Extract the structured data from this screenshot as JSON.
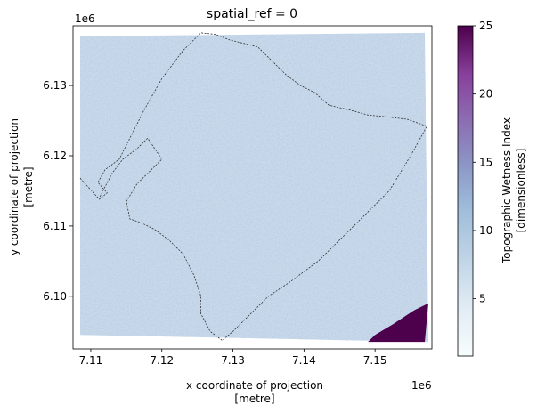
{
  "chart_data": {
    "type": "heatmap",
    "title": "spatial_ref = 0",
    "xlabel_line1": "x coordinate of projection",
    "xlabel_line2": "[metre]",
    "ylabel_line1": "y coordinate of projection",
    "ylabel_line2": "[metre]",
    "x_offset_label": "1e6",
    "y_offset_label": "1e6",
    "xlim": [
      7.1075,
      7.158
    ],
    "ylim": [
      6.0925,
      6.1385
    ],
    "x_ticks": [
      {
        "value": 7.11,
        "label": "7.11"
      },
      {
        "value": 7.12,
        "label": "7.12"
      },
      {
        "value": 7.13,
        "label": "7.13"
      },
      {
        "value": 7.14,
        "label": "7.14"
      },
      {
        "value": 7.15,
        "label": "7.15"
      }
    ],
    "y_ticks": [
      {
        "value": 6.1,
        "label": "6.10"
      },
      {
        "value": 6.11,
        "label": "6.11"
      },
      {
        "value": 6.12,
        "label": "6.12"
      },
      {
        "value": 6.13,
        "label": "6.13"
      }
    ],
    "colorbar": {
      "label_line1": "Topographic Wetness Index",
      "label_line2": "[dimensionless]",
      "min": 0.8,
      "max": 25,
      "colormap": "BuPu",
      "ticks": [
        {
          "value": 5,
          "label": "5"
        },
        {
          "value": 10,
          "label": "10"
        },
        {
          "value": 15,
          "label": "15"
        },
        {
          "value": 20,
          "label": "20"
        },
        {
          "value": 25,
          "label": "25"
        }
      ]
    },
    "raster_extent": {
      "top_left": [
        7.1085,
        6.137
      ],
      "top_right": [
        7.157,
        6.1375
      ],
      "bottom_right": [
        7.1575,
        6.0935
      ],
      "bottom_left": [
        7.1085,
        6.0945
      ],
      "typical_value": 5.5,
      "high_value_region": {
        "polygon": [
          [
            7.149,
            6.0935
          ],
          [
            7.157,
            6.0935
          ],
          [
            7.1575,
            6.099
          ],
          [
            7.1555,
            6.098
          ],
          [
            7.1525,
            6.096
          ],
          [
            7.15,
            6.0945
          ]
        ],
        "value": 25
      }
    },
    "boundary_outline": {
      "style": "dashed",
      "color": "#333333",
      "points": [
        [
          7.1085,
          6.1168
        ],
        [
          7.1112,
          6.1138
        ],
        [
          7.1123,
          6.1147
        ],
        [
          7.111,
          6.1162
        ],
        [
          7.112,
          6.118
        ],
        [
          7.114,
          6.1195
        ],
        [
          7.1155,
          6.1225
        ],
        [
          7.1175,
          6.1265
        ],
        [
          7.12,
          6.131
        ],
        [
          7.123,
          6.135
        ],
        [
          7.1255,
          6.1375
        ],
        [
          7.1275,
          6.1373
        ],
        [
          7.1295,
          6.1365
        ],
        [
          7.1315,
          6.136
        ],
        [
          7.1335,
          6.1355
        ],
        [
          7.1355,
          6.1335
        ],
        [
          7.1375,
          6.1315
        ],
        [
          7.1395,
          6.13
        ],
        [
          7.1415,
          6.129
        ],
        [
          7.1435,
          6.1272
        ],
        [
          7.1465,
          6.1265
        ],
        [
          7.149,
          6.1258
        ],
        [
          7.152,
          6.1255
        ],
        [
          7.1545,
          6.1252
        ],
        [
          7.1573,
          6.1242
        ],
        [
          7.155,
          6.12
        ],
        [
          7.152,
          6.115
        ],
        [
          7.148,
          6.111
        ],
        [
          7.145,
          6.108
        ],
        [
          7.142,
          6.105
        ],
        [
          7.138,
          6.102
        ],
        [
          7.135,
          6.1
        ],
        [
          7.132,
          6.097
        ],
        [
          7.13,
          6.095
        ],
        [
          7.1285,
          6.0937
        ],
        [
          7.1268,
          6.095
        ],
        [
          7.1255,
          6.0975
        ],
        [
          7.1255,
          6.1
        ],
        [
          7.1245,
          6.103
        ],
        [
          7.123,
          6.106
        ],
        [
          7.121,
          6.108
        ],
        [
          7.119,
          6.1095
        ],
        [
          7.117,
          6.1105
        ],
        [
          7.1155,
          6.111
        ],
        [
          7.115,
          6.1135
        ],
        [
          7.1165,
          6.116
        ],
        [
          7.1185,
          6.118
        ],
        [
          7.12,
          6.1195
        ],
        [
          7.118,
          6.1225
        ],
        [
          7.1165,
          6.121
        ],
        [
          7.1145,
          6.1195
        ],
        [
          7.113,
          6.1175
        ],
        [
          7.1112,
          6.114
        ]
      ]
    }
  }
}
